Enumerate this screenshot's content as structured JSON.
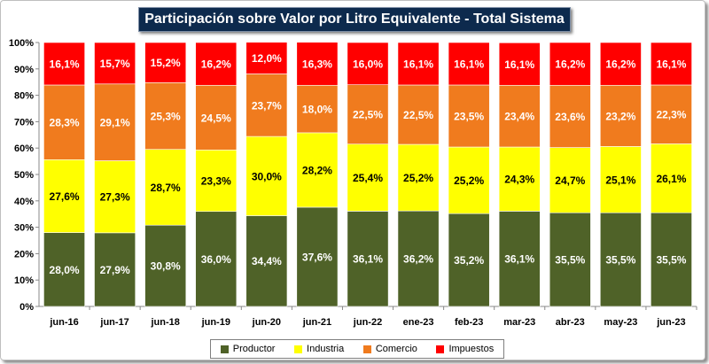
{
  "chart_data": {
    "type": "bar",
    "stacked": true,
    "percent": true,
    "title": "Participación sobre Valor por Litro Equivalente - Total Sistema",
    "categories": [
      "jun-16",
      "jun-17",
      "jun-18",
      "jun-19",
      "jun-20",
      "jun-21",
      "jun-22",
      "ene-23",
      "feb-23",
      "mar-23",
      "abr-23",
      "may-23",
      "jun-23"
    ],
    "y_ticks": [
      "0%",
      "10%",
      "20%",
      "30%",
      "40%",
      "50%",
      "60%",
      "70%",
      "80%",
      "90%",
      "100%"
    ],
    "ylim": [
      0,
      100
    ],
    "legend_position": "bottom",
    "series": [
      {
        "name": "Productor",
        "color": "#4f6228",
        "label_color": "#ffffff",
        "values": [
          28.0,
          27.9,
          30.8,
          36.0,
          34.4,
          37.6,
          36.1,
          36.2,
          35.2,
          36.1,
          35.5,
          35.5,
          35.5
        ],
        "labels": [
          "28,0%",
          "27,9%",
          "30,8%",
          "36,0%",
          "34,4%",
          "37,6%",
          "36,1%",
          "36,2%",
          "35,2%",
          "36,1%",
          "35,5%",
          "35,5%",
          "35,5%"
        ]
      },
      {
        "name": "Industria",
        "color": "#ffff00",
        "label_color": "#000000",
        "values": [
          27.6,
          27.3,
          28.7,
          23.3,
          30.0,
          28.2,
          25.4,
          25.2,
          25.2,
          24.3,
          24.7,
          25.1,
          26.1
        ],
        "labels": [
          "27,6%",
          "27,3%",
          "28,7%",
          "23,3%",
          "30,0%",
          "28,2%",
          "25,4%",
          "25,2%",
          "25,2%",
          "24,3%",
          "24,7%",
          "25,1%",
          "26,1%"
        ]
      },
      {
        "name": "Comercio",
        "color": "#f07b1e",
        "label_color": "#ffffff",
        "values": [
          28.3,
          29.1,
          25.3,
          24.5,
          23.7,
          18.0,
          22.5,
          22.5,
          23.5,
          23.4,
          23.6,
          23.2,
          22.3
        ],
        "labels": [
          "28,3%",
          "29,1%",
          "25,3%",
          "24,5%",
          "23,7%",
          "18,0%",
          "22,5%",
          "22,5%",
          "23,5%",
          "23,4%",
          "23,6%",
          "23,2%",
          "22,3%"
        ]
      },
      {
        "name": "Impuestos",
        "color": "#ff0000",
        "label_color": "#ffffff",
        "values": [
          16.1,
          15.7,
          15.2,
          16.2,
          12.0,
          16.3,
          16.0,
          16.1,
          16.1,
          16.1,
          16.2,
          16.2,
          16.1
        ],
        "labels": [
          "16,1%",
          "15,7%",
          "15,2%",
          "16,2%",
          "12,0%",
          "16,3%",
          "16,0%",
          "16,1%",
          "16,1%",
          "16,1%",
          "16,2%",
          "16,2%",
          "16,1%"
        ]
      }
    ]
  }
}
